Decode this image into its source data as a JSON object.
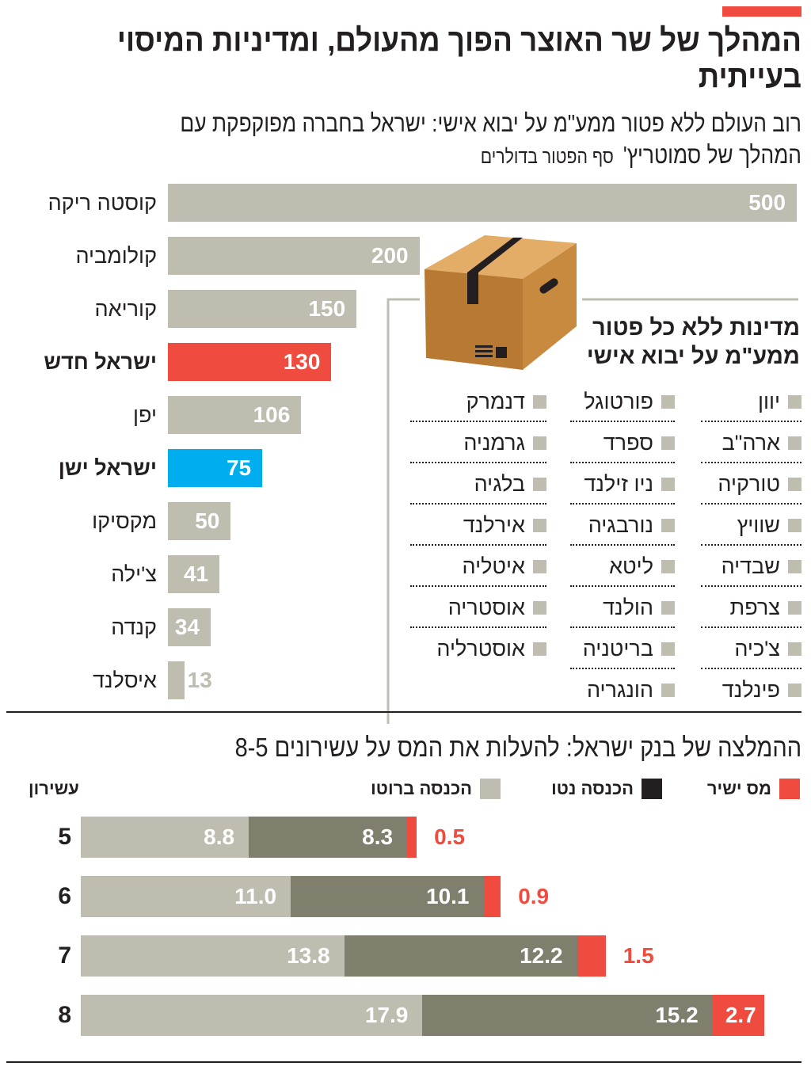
{
  "header": {
    "title": "המהלך של שר האוצר הפוך מהעולם, ומדיניות המיסוי בעייתית"
  },
  "colors": {
    "accent": "#ef4b3f",
    "gray": "#bfbcb0",
    "net": "#807e6c",
    "blue": "#00aeef",
    "box": "#c88a3e"
  },
  "chart_data": [
    {
      "type": "bar",
      "orientation": "horizontal",
      "title": "רוב העולם ללא פטור ממע\"מ על יבוא אישי: ישראל בחברה מפוקפקת עם המהלך של סמוטריץ'",
      "ylabel": "סף הפטור בדולרים",
      "xlim": [
        0,
        500
      ],
      "categories": [
        "קוסטה ריקה",
        "קולומביה",
        "קוריאה",
        "ישראל חדש",
        "יפן",
        "ישראל ישן",
        "מקסיקו",
        "צ'ילה",
        "קנדה",
        "איסלנד"
      ],
      "values": [
        500,
        200,
        150,
        130,
        106,
        75,
        50,
        41,
        34,
        13
      ],
      "highlight": {
        "ישראל חדש": "#ef4b3f",
        "ישראל ישן": "#00aeef"
      }
    },
    {
      "type": "bar",
      "stacked": true,
      "orientation": "horizontal",
      "title": "ההמלצה של בנק ישראל: להעלות את המס על עשירונים 8-5",
      "axis_label": "עשירון",
      "categories": [
        "5",
        "6",
        "7",
        "8"
      ],
      "series": [
        {
          "name": "הכנסה ברוטו",
          "values": [
            8.8,
            11.0,
            13.8,
            17.9
          ]
        },
        {
          "name": "הכנסה נטו",
          "values": [
            8.3,
            10.1,
            12.2,
            15.2
          ]
        },
        {
          "name": "מס ישיר",
          "values": [
            0.5,
            0.9,
            1.5,
            2.7
          ]
        }
      ],
      "labels": {
        "gross": [
          "8.8",
          "11.0",
          "13.8",
          "17.9"
        ],
        "net": [
          "8.3",
          "10.1",
          "12.2",
          "15.2"
        ],
        "tax": [
          "0.5",
          "0.9",
          "1.5",
          "2.7"
        ]
      }
    }
  ],
  "no_exemption": {
    "title_line1": "מדינות ללא כל פטור",
    "title_line2": "ממע\"מ על יבוא אישי",
    "columns": [
      [
        "יוון",
        "ארה\"ב",
        "טורקיה",
        "שוויץ",
        "שבדיה",
        "צרפת",
        "צ'כיה",
        "פינלנד"
      ],
      [
        "פורטוגל",
        "ספרד",
        "ניו זילנד",
        "נורבגיה",
        "ליטא",
        "הולנד",
        "בריטניה",
        "הונגריה"
      ],
      [
        "דנמרק",
        "גרמניה",
        "בלגיה",
        "אירלנד",
        "איטליה",
        "אוסטריה",
        "אוסטרליה"
      ]
    ]
  }
}
